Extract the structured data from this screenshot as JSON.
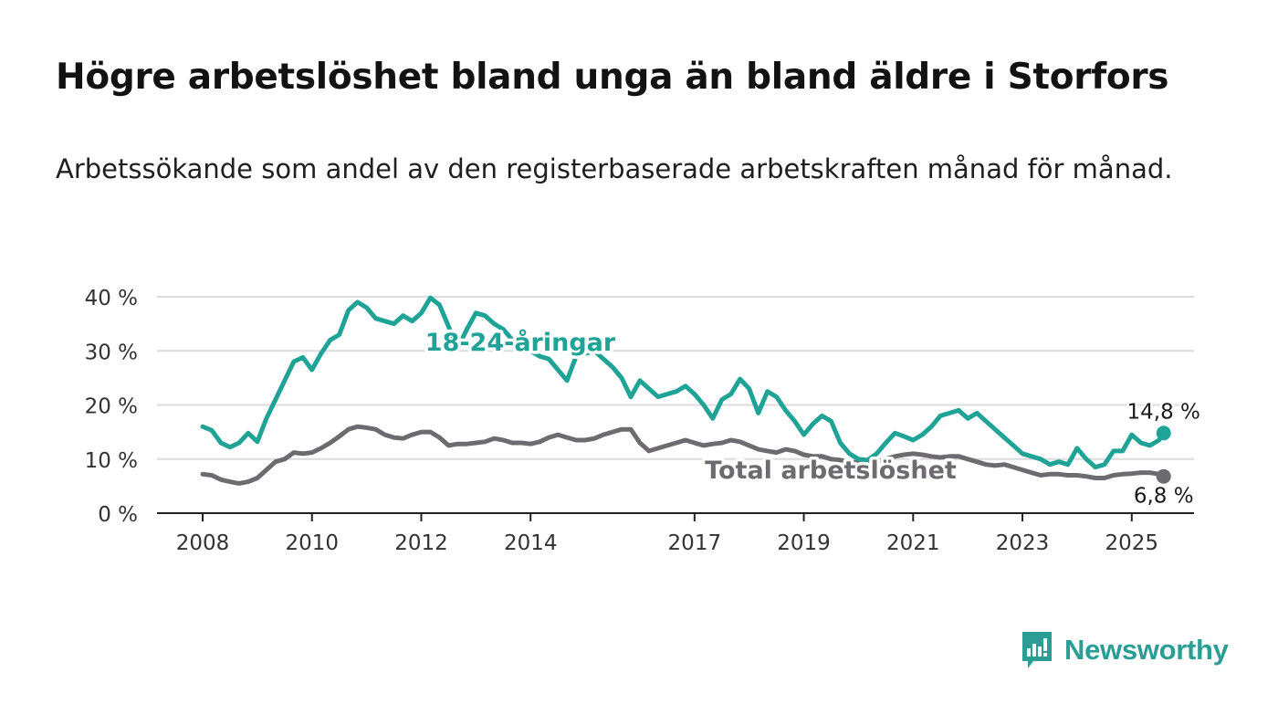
{
  "title": "Högre arbetslöshet bland unga än bland äldre i Storfors",
  "subtitle": "Arbetssökande som andel av den registerbaserade arbetskraften månad för månad.",
  "logo": {
    "text": "Newsworthy",
    "icon": "bar-chart-speech-bubble-icon",
    "color": "#2a9e95"
  },
  "chart_data": {
    "type": "line",
    "x_ticks": [
      "2008",
      "2010",
      "2012",
      "2014",
      "2017",
      "2019",
      "2021",
      "2023",
      "2025"
    ],
    "y_ticks": [
      "0 %",
      "10 %",
      "20 %",
      "30 %",
      "40 %"
    ],
    "ylim": [
      0,
      40
    ],
    "xlim": [
      "2008-01",
      "2025-12"
    ],
    "grid": true,
    "series": [
      {
        "name": "18-24-åringar",
        "color": "#1fa396",
        "end_label": "14,8 %",
        "points": [
          [
            "2008-01",
            16.0
          ],
          [
            "2008-03",
            15.3
          ],
          [
            "2008-05",
            13.0
          ],
          [
            "2008-07",
            12.2
          ],
          [
            "2008-09",
            13.0
          ],
          [
            "2008-11",
            14.8
          ],
          [
            "2009-01",
            13.2
          ],
          [
            "2009-03",
            17.5
          ],
          [
            "2009-05",
            21.0
          ],
          [
            "2009-07",
            24.5
          ],
          [
            "2009-09",
            28.0
          ],
          [
            "2009-11",
            28.8
          ],
          [
            "2010-01",
            26.5
          ],
          [
            "2010-03",
            29.5
          ],
          [
            "2010-05",
            32.0
          ],
          [
            "2010-07",
            33.0
          ],
          [
            "2010-09",
            37.5
          ],
          [
            "2010-11",
            39.0
          ],
          [
            "2011-01",
            38.0
          ],
          [
            "2011-03",
            36.0
          ],
          [
            "2011-05",
            35.5
          ],
          [
            "2011-07",
            35.0
          ],
          [
            "2011-09",
            36.5
          ],
          [
            "2011-11",
            35.5
          ],
          [
            "2012-01",
            37.0
          ],
          [
            "2012-03",
            39.8
          ],
          [
            "2012-05",
            38.5
          ],
          [
            "2012-07",
            34.5
          ],
          [
            "2012-09",
            30.5
          ],
          [
            "2012-11",
            34.0
          ],
          [
            "2013-01",
            37.0
          ],
          [
            "2013-03",
            36.5
          ],
          [
            "2013-05",
            35.0
          ],
          [
            "2013-07",
            34.0
          ],
          [
            "2013-09",
            32.0
          ],
          [
            "2013-11",
            31.0
          ],
          [
            "2014-01",
            30.0
          ],
          [
            "2014-03",
            29.0
          ],
          [
            "2014-05",
            28.5
          ],
          [
            "2014-07",
            26.5
          ],
          [
            "2014-09",
            24.5
          ],
          [
            "2014-11",
            29.0
          ],
          [
            "2015-01",
            29.5
          ],
          [
            "2015-03",
            30.0
          ],
          [
            "2015-05",
            28.5
          ],
          [
            "2015-07",
            27.0
          ],
          [
            "2015-09",
            25.0
          ],
          [
            "2015-11",
            21.5
          ],
          [
            "2016-01",
            24.5
          ],
          [
            "2016-03",
            23.0
          ],
          [
            "2016-05",
            21.5
          ],
          [
            "2016-07",
            22.0
          ],
          [
            "2016-09",
            22.5
          ],
          [
            "2016-11",
            23.5
          ],
          [
            "2017-01",
            22.0
          ],
          [
            "2017-03",
            20.0
          ],
          [
            "2017-05",
            17.5
          ],
          [
            "2017-07",
            21.0
          ],
          [
            "2017-09",
            22.0
          ],
          [
            "2017-11",
            24.8
          ],
          [
            "2018-01",
            23.0
          ],
          [
            "2018-03",
            18.5
          ],
          [
            "2018-05",
            22.5
          ],
          [
            "2018-07",
            21.5
          ],
          [
            "2018-09",
            19.0
          ],
          [
            "2018-11",
            17.0
          ],
          [
            "2019-01",
            14.5
          ],
          [
            "2019-03",
            16.5
          ],
          [
            "2019-05",
            18.0
          ],
          [
            "2019-07",
            17.0
          ],
          [
            "2019-09",
            13.0
          ],
          [
            "2019-11",
            11.0
          ],
          [
            "2020-01",
            10.0
          ],
          [
            "2020-03",
            9.8
          ],
          [
            "2020-05",
            11.0
          ],
          [
            "2020-07",
            13.0
          ],
          [
            "2020-09",
            14.8
          ],
          [
            "2020-11",
            14.2
          ],
          [
            "2021-01",
            13.5
          ],
          [
            "2021-03",
            14.5
          ],
          [
            "2021-05",
            16.0
          ],
          [
            "2021-07",
            18.0
          ],
          [
            "2021-09",
            18.5
          ],
          [
            "2021-11",
            19.0
          ],
          [
            "2022-01",
            17.5
          ],
          [
            "2022-03",
            18.5
          ],
          [
            "2022-05",
            17.0
          ],
          [
            "2022-07",
            15.5
          ],
          [
            "2022-09",
            14.0
          ],
          [
            "2022-11",
            12.5
          ],
          [
            "2023-01",
            11.0
          ],
          [
            "2023-03",
            10.5
          ],
          [
            "2023-05",
            10.0
          ],
          [
            "2023-07",
            9.0
          ],
          [
            "2023-09",
            9.5
          ],
          [
            "2023-11",
            9.0
          ],
          [
            "2024-01",
            12.0
          ],
          [
            "2024-03",
            10.0
          ],
          [
            "2024-05",
            8.5
          ],
          [
            "2024-07",
            9.0
          ],
          [
            "2024-09",
            11.5
          ],
          [
            "2024-11",
            11.5
          ],
          [
            "2025-01",
            14.5
          ],
          [
            "2025-03",
            13.0
          ],
          [
            "2025-05",
            12.5
          ],
          [
            "2025-07",
            13.5
          ],
          [
            "2025-08",
            14.8
          ]
        ]
      },
      {
        "name": "Total arbetslöshet",
        "color": "#6e6b70",
        "end_label": "6,8 %",
        "points": [
          [
            "2008-01",
            7.2
          ],
          [
            "2008-03",
            7.0
          ],
          [
            "2008-05",
            6.2
          ],
          [
            "2008-07",
            5.8
          ],
          [
            "2008-09",
            5.5
          ],
          [
            "2008-11",
            5.8
          ],
          [
            "2009-01",
            6.5
          ],
          [
            "2009-03",
            8.0
          ],
          [
            "2009-05",
            9.5
          ],
          [
            "2009-07",
            10.0
          ],
          [
            "2009-09",
            11.2
          ],
          [
            "2009-11",
            11.0
          ],
          [
            "2010-01",
            11.2
          ],
          [
            "2010-03",
            12.0
          ],
          [
            "2010-05",
            13.0
          ],
          [
            "2010-07",
            14.2
          ],
          [
            "2010-09",
            15.5
          ],
          [
            "2010-11",
            16.0
          ],
          [
            "2011-01",
            15.8
          ],
          [
            "2011-03",
            15.5
          ],
          [
            "2011-05",
            14.5
          ],
          [
            "2011-07",
            14.0
          ],
          [
            "2011-09",
            13.8
          ],
          [
            "2011-11",
            14.5
          ],
          [
            "2012-01",
            15.0
          ],
          [
            "2012-03",
            15.0
          ],
          [
            "2012-05",
            14.0
          ],
          [
            "2012-07",
            12.5
          ],
          [
            "2012-09",
            12.8
          ],
          [
            "2012-11",
            12.8
          ],
          [
            "2013-01",
            13.0
          ],
          [
            "2013-03",
            13.2
          ],
          [
            "2013-05",
            13.8
          ],
          [
            "2013-07",
            13.5
          ],
          [
            "2013-09",
            13.0
          ],
          [
            "2013-11",
            13.0
          ],
          [
            "2014-01",
            12.8
          ],
          [
            "2014-03",
            13.2
          ],
          [
            "2014-05",
            14.0
          ],
          [
            "2014-07",
            14.5
          ],
          [
            "2014-09",
            14.0
          ],
          [
            "2014-11",
            13.5
          ],
          [
            "2015-01",
            13.5
          ],
          [
            "2015-03",
            13.8
          ],
          [
            "2015-05",
            14.5
          ],
          [
            "2015-07",
            15.0
          ],
          [
            "2015-09",
            15.5
          ],
          [
            "2015-11",
            15.5
          ],
          [
            "2016-01",
            13.0
          ],
          [
            "2016-03",
            11.5
          ],
          [
            "2016-05",
            12.0
          ],
          [
            "2016-07",
            12.5
          ],
          [
            "2016-09",
            13.0
          ],
          [
            "2016-11",
            13.5
          ],
          [
            "2017-01",
            13.0
          ],
          [
            "2017-03",
            12.5
          ],
          [
            "2017-05",
            12.8
          ],
          [
            "2017-07",
            13.0
          ],
          [
            "2017-09",
            13.5
          ],
          [
            "2017-11",
            13.2
          ],
          [
            "2018-01",
            12.5
          ],
          [
            "2018-03",
            11.8
          ],
          [
            "2018-05",
            11.5
          ],
          [
            "2018-07",
            11.2
          ],
          [
            "2018-09",
            11.8
          ],
          [
            "2018-11",
            11.5
          ],
          [
            "2019-01",
            10.8
          ],
          [
            "2019-03",
            10.5
          ],
          [
            "2019-05",
            10.5
          ],
          [
            "2019-07",
            10.0
          ],
          [
            "2019-09",
            9.8
          ],
          [
            "2019-11",
            9.5
          ],
          [
            "2020-01",
            9.3
          ],
          [
            "2020-03",
            9.0
          ],
          [
            "2020-05",
            9.5
          ],
          [
            "2020-07",
            10.0
          ],
          [
            "2020-09",
            10.5
          ],
          [
            "2020-11",
            10.8
          ],
          [
            "2021-01",
            11.0
          ],
          [
            "2021-03",
            10.8
          ],
          [
            "2021-05",
            10.5
          ],
          [
            "2021-07",
            10.3
          ],
          [
            "2021-09",
            10.5
          ],
          [
            "2021-11",
            10.5
          ],
          [
            "2022-01",
            10.0
          ],
          [
            "2022-03",
            9.5
          ],
          [
            "2022-05",
            9.0
          ],
          [
            "2022-07",
            8.8
          ],
          [
            "2022-09",
            9.0
          ],
          [
            "2022-11",
            8.5
          ],
          [
            "2023-01",
            8.0
          ],
          [
            "2023-03",
            7.5
          ],
          [
            "2023-05",
            7.0
          ],
          [
            "2023-07",
            7.2
          ],
          [
            "2023-09",
            7.2
          ],
          [
            "2023-11",
            7.0
          ],
          [
            "2024-01",
            7.0
          ],
          [
            "2024-03",
            6.8
          ],
          [
            "2024-05",
            6.5
          ],
          [
            "2024-07",
            6.5
          ],
          [
            "2024-09",
            7.0
          ],
          [
            "2024-11",
            7.2
          ],
          [
            "2025-01",
            7.3
          ],
          [
            "2025-03",
            7.5
          ],
          [
            "2025-05",
            7.5
          ],
          [
            "2025-07",
            7.2
          ],
          [
            "2025-08",
            6.8
          ]
        ]
      }
    ]
  }
}
